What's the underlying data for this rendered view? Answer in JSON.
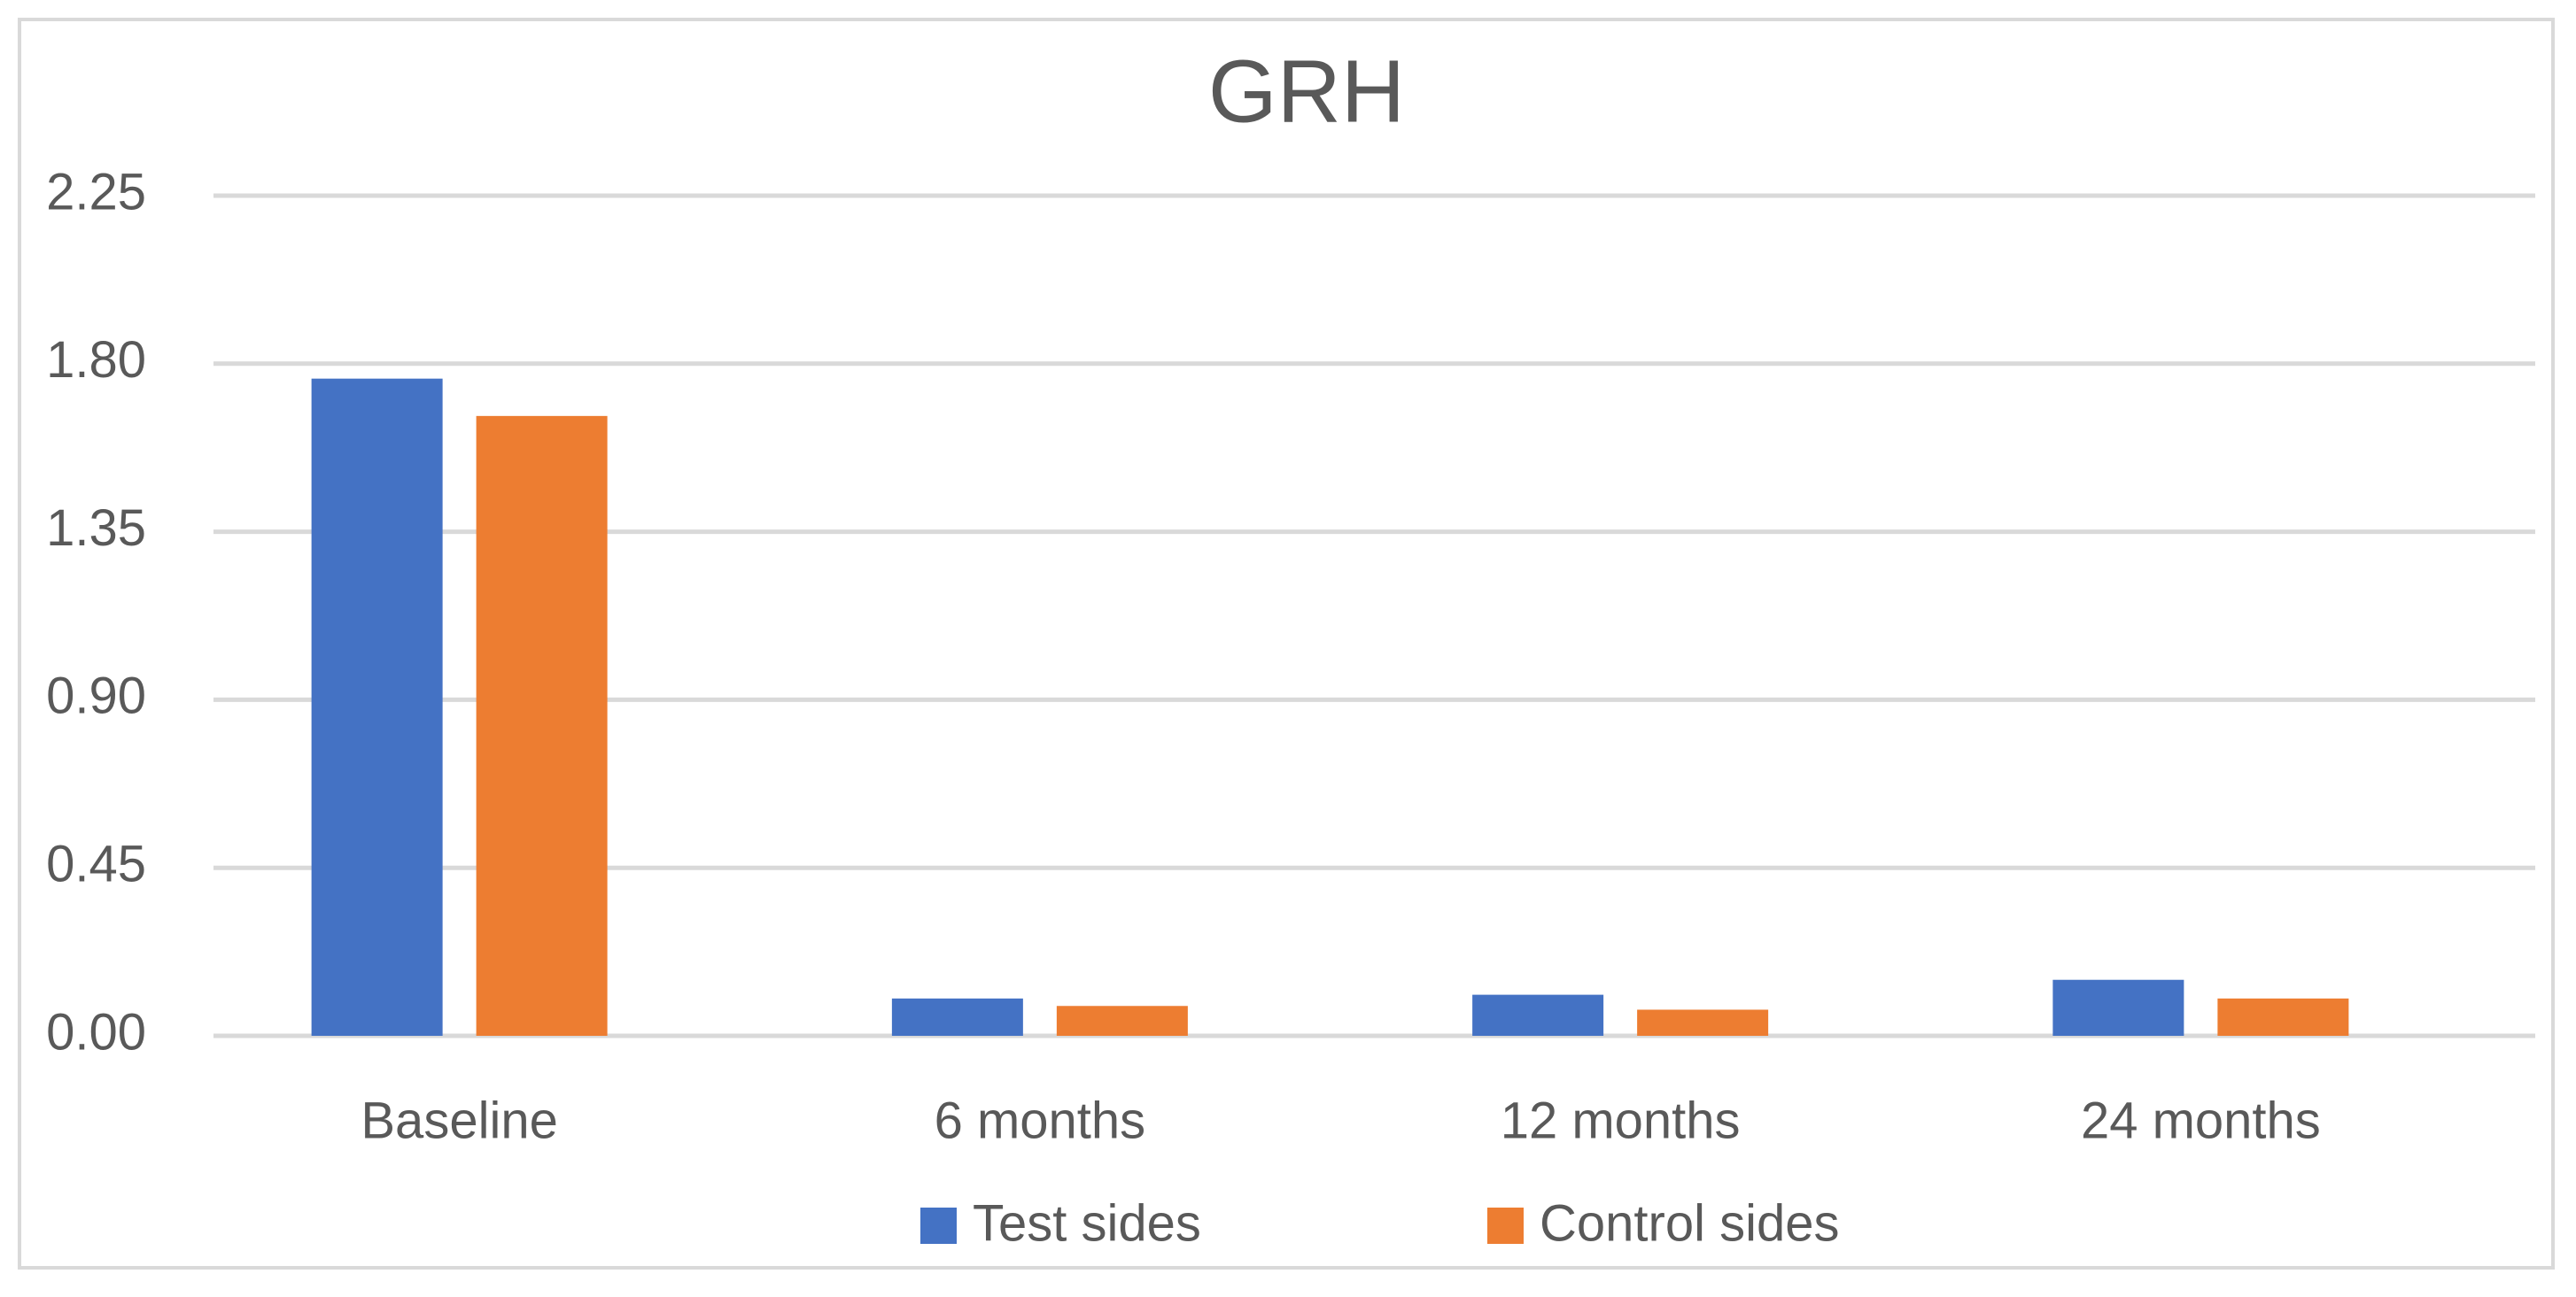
{
  "chart_data": {
    "type": "bar",
    "title": "GRH",
    "categories": [
      "Baseline",
      "6 months",
      "12 months",
      "24 months"
    ],
    "series": [
      {
        "name": "Test sides",
        "color": "#4472c4",
        "values": [
          1.76,
          0.1,
          0.11,
          0.15
        ]
      },
      {
        "name": "Control sides",
        "color": "#ed7d31",
        "values": [
          1.66,
          0.08,
          0.07,
          0.1
        ]
      }
    ],
    "ylim": [
      0,
      2.25
    ],
    "yticks": [
      {
        "value": 0,
        "label": "0.00"
      },
      0.45,
      {
        "value": 0.9,
        "label": "0.90"
      },
      1.35,
      {
        "value": 1.8,
        "label": "1.80"
      },
      2.25
    ],
    "grid": true,
    "legend": "bottom"
  }
}
